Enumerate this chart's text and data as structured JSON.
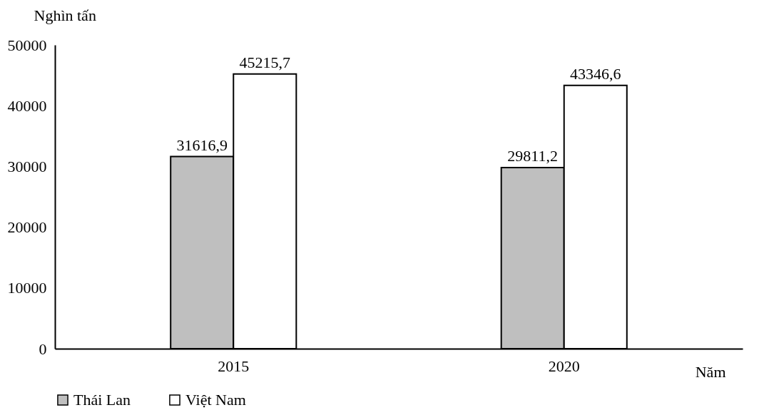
{
  "chart_data": {
    "type": "bar",
    "xlabel": "Năm",
    "ylabel": "Nghìn tấn",
    "categories": [
      "2015",
      "2020"
    ],
    "series": [
      {
        "name": "Thái Lan",
        "color": "#bfbfbf",
        "values": [
          31616.9,
          29811.2
        ],
        "value_labels": [
          "31616,9",
          "29811,2"
        ]
      },
      {
        "name": "Việt Nam",
        "color": "#ffffff",
        "values": [
          45215.7,
          43346.6
        ],
        "value_labels": [
          "45215,7",
          "43346,6"
        ]
      }
    ],
    "ylim": [
      0,
      50000
    ],
    "yticks": [
      0,
      10000,
      20000,
      30000,
      40000,
      50000
    ],
    "grid": false,
    "legend": "bottom"
  }
}
